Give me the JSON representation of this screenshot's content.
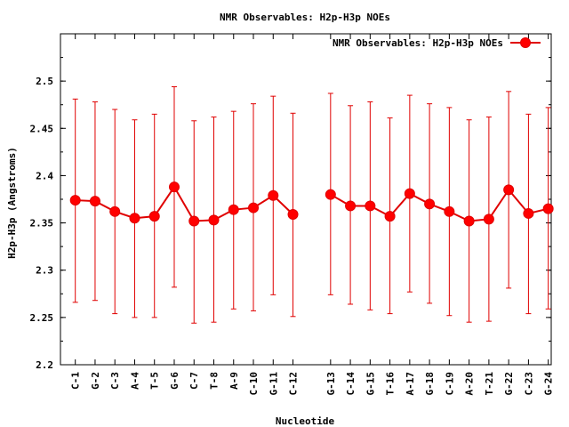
{
  "chart_data": {
    "type": "line",
    "title": "NMR Observables: H2p-H3p NOEs",
    "xlabel": "Nucleotide",
    "ylabel": "H2p-H3p (Angstroms)",
    "ylim": [
      2.2,
      2.55
    ],
    "yticks": [
      "2.2",
      "2.25",
      "2.3",
      "2.35",
      "2.4",
      "2.45",
      "2.5"
    ],
    "grid": false,
    "legend_position": "top-right",
    "series_color": "#ff0000",
    "categories": [
      "C-1",
      "G-2",
      "C-3",
      "A-4",
      "T-5",
      "G-6",
      "C-7",
      "T-8",
      "A-9",
      "C-10",
      "G-11",
      "C-12",
      "G-13",
      "C-14",
      "G-15",
      "T-16",
      "A-17",
      "G-18",
      "C-19",
      "A-20",
      "T-21",
      "G-22",
      "C-23",
      "G-24"
    ],
    "series": [
      {
        "name": "NMR Observables: H2p-H3p NOEs",
        "segments": [
          {
            "x": [
              1,
              2,
              3,
              4,
              5,
              6,
              7,
              8,
              9,
              10,
              11,
              12
            ],
            "values": [
              2.374,
              2.373,
              2.362,
              2.355,
              2.357,
              2.388,
              2.352,
              2.353,
              2.364,
              2.366,
              2.379,
              2.359
            ],
            "err_low": [
              2.266,
              2.268,
              2.254,
              2.25,
              2.25,
              2.282,
              2.244,
              2.245,
              2.259,
              2.257,
              2.274,
              2.251
            ],
            "err_high": [
              2.481,
              2.478,
              2.47,
              2.459,
              2.465,
              2.494,
              2.458,
              2.462,
              2.468,
              2.476,
              2.484,
              2.466
            ]
          },
          {
            "x": [
              13.9,
              14.9,
              15.9,
              16.9,
              17.9,
              18.9,
              19.9,
              20.9,
              21.9,
              22.9,
              23.9,
              24.9
            ],
            "values": [
              2.38,
              2.368,
              2.368,
              2.357,
              2.381,
              2.37,
              2.362,
              2.352,
              2.354,
              2.385,
              2.36,
              2.365
            ],
            "err_low": [
              2.274,
              2.264,
              2.258,
              2.254,
              2.277,
              2.265,
              2.252,
              2.245,
              2.246,
              2.281,
              2.254,
              2.259
            ],
            "err_high": [
              2.487,
              2.474,
              2.478,
              2.461,
              2.485,
              2.476,
              2.472,
              2.459,
              2.462,
              2.489,
              2.465,
              2.472
            ]
          }
        ]
      }
    ]
  }
}
